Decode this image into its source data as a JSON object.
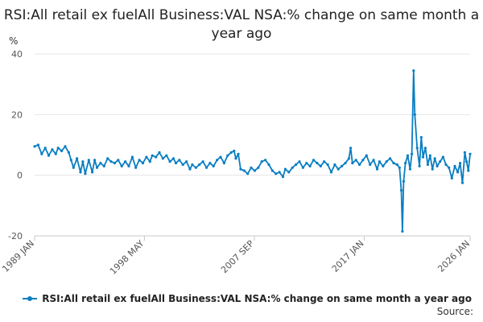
{
  "chart_data": {
    "type": "line",
    "title": "RSI:All retail ex fuelAll Business:VAL NSA:% change on same month a year ago",
    "ylabel": "%",
    "xlabel": "",
    "ylim": [
      -20,
      40
    ],
    "yticks": [
      -20,
      0,
      20,
      40
    ],
    "xlim": [
      1989.0,
      2026.0
    ],
    "xticks": [
      {
        "label": "1989 JAN",
        "x": 1989.0
      },
      {
        "label": "1998 MAY",
        "x": 1998.33
      },
      {
        "label": "2007 SEP",
        "x": 2007.67
      },
      {
        "label": "2017 JAN",
        "x": 2017.0
      },
      {
        "label": "2026 JAN",
        "x": 2026.0
      }
    ],
    "grid": true,
    "legend_position": "bottom-right",
    "series": [
      {
        "name": "RSI:All retail ex fuelAll Business:VAL NSA:% change on same month a year ago",
        "color": "#0a7ec2",
        "points": [
          [
            1989.0,
            9.5
          ],
          [
            1989.3,
            10.0
          ],
          [
            1989.6,
            7.0
          ],
          [
            1989.9,
            9.0
          ],
          [
            1990.2,
            6.5
          ],
          [
            1990.5,
            8.5
          ],
          [
            1990.8,
            7.0
          ],
          [
            1991.0,
            9.0
          ],
          [
            1991.3,
            8.0
          ],
          [
            1991.6,
            9.5
          ],
          [
            1991.9,
            7.5
          ],
          [
            1992.1,
            5.0
          ],
          [
            1992.3,
            2.5
          ],
          [
            1992.6,
            5.5
          ],
          [
            1992.9,
            1.0
          ],
          [
            1993.1,
            4.5
          ],
          [
            1993.3,
            0.5
          ],
          [
            1993.6,
            5.0
          ],
          [
            1993.9,
            1.0
          ],
          [
            1994.1,
            5.0
          ],
          [
            1994.3,
            2.5
          ],
          [
            1994.6,
            4.0
          ],
          [
            1994.9,
            3.0
          ],
          [
            1995.2,
            5.5
          ],
          [
            1995.5,
            4.5
          ],
          [
            1995.8,
            4.0
          ],
          [
            1996.1,
            5.0
          ],
          [
            1996.4,
            3.0
          ],
          [
            1996.7,
            4.5
          ],
          [
            1997.0,
            3.0
          ],
          [
            1997.3,
            6.0
          ],
          [
            1997.6,
            2.5
          ],
          [
            1997.9,
            5.0
          ],
          [
            1998.2,
            4.0
          ],
          [
            1998.5,
            6.0
          ],
          [
            1998.8,
            4.5
          ],
          [
            1999.0,
            6.5
          ],
          [
            1999.3,
            6.0
          ],
          [
            1999.6,
            7.5
          ],
          [
            1999.9,
            5.5
          ],
          [
            2000.2,
            6.5
          ],
          [
            2000.5,
            4.5
          ],
          [
            2000.8,
            5.5
          ],
          [
            2001.0,
            4.0
          ],
          [
            2001.3,
            5.0
          ],
          [
            2001.6,
            3.5
          ],
          [
            2001.9,
            4.5
          ],
          [
            2002.2,
            2.0
          ],
          [
            2002.4,
            3.5
          ],
          [
            2002.7,
            2.5
          ],
          [
            2003.0,
            3.5
          ],
          [
            2003.3,
            4.5
          ],
          [
            2003.6,
            2.5
          ],
          [
            2003.9,
            4.0
          ],
          [
            2004.2,
            3.0
          ],
          [
            2004.5,
            5.0
          ],
          [
            2004.8,
            6.0
          ],
          [
            2005.1,
            4.0
          ],
          [
            2005.4,
            6.5
          ],
          [
            2005.7,
            7.5
          ],
          [
            2005.95,
            8.0
          ],
          [
            2006.1,
            5.5
          ],
          [
            2006.3,
            7.0
          ],
          [
            2006.5,
            2.0
          ],
          [
            2006.8,
            1.5
          ],
          [
            2007.1,
            0.5
          ],
          [
            2007.4,
            2.5
          ],
          [
            2007.7,
            1.5
          ],
          [
            2008.0,
            2.5
          ],
          [
            2008.3,
            4.5
          ],
          [
            2008.6,
            5.0
          ],
          [
            2008.9,
            3.5
          ],
          [
            2009.2,
            1.5
          ],
          [
            2009.5,
            0.5
          ],
          [
            2009.8,
            1.0
          ],
          [
            2010.1,
            -0.5
          ],
          [
            2010.3,
            2.0
          ],
          [
            2010.6,
            1.0
          ],
          [
            2010.9,
            2.5
          ],
          [
            2011.2,
            3.5
          ],
          [
            2011.5,
            4.5
          ],
          [
            2011.8,
            2.5
          ],
          [
            2012.1,
            4.0
          ],
          [
            2012.4,
            3.0
          ],
          [
            2012.7,
            5.0
          ],
          [
            2013.0,
            4.0
          ],
          [
            2013.3,
            3.0
          ],
          [
            2013.6,
            4.5
          ],
          [
            2013.9,
            3.5
          ],
          [
            2014.2,
            1.0
          ],
          [
            2014.5,
            3.5
          ],
          [
            2014.8,
            2.0
          ],
          [
            2015.1,
            3.0
          ],
          [
            2015.4,
            4.0
          ],
          [
            2015.7,
            5.5
          ],
          [
            2015.85,
            9.0
          ],
          [
            2016.0,
            4.0
          ],
          [
            2016.3,
            5.0
          ],
          [
            2016.6,
            3.5
          ],
          [
            2016.9,
            5.0
          ],
          [
            2017.2,
            6.5
          ],
          [
            2017.5,
            3.5
          ],
          [
            2017.8,
            5.0
          ],
          [
            2018.1,
            2.0
          ],
          [
            2018.3,
            4.5
          ],
          [
            2018.6,
            3.0
          ],
          [
            2018.9,
            4.5
          ],
          [
            2019.2,
            5.5
          ],
          [
            2019.5,
            4.0
          ],
          [
            2019.8,
            3.5
          ],
          [
            2020.0,
            2.5
          ],
          [
            2020.15,
            -5.0
          ],
          [
            2020.25,
            -18.5
          ],
          [
            2020.35,
            -2.0
          ],
          [
            2020.5,
            4.0
          ],
          [
            2020.7,
            6.5
          ],
          [
            2020.9,
            2.0
          ],
          [
            2021.05,
            7.0
          ],
          [
            2021.2,
            34.5
          ],
          [
            2021.3,
            20.0
          ],
          [
            2021.5,
            9.0
          ],
          [
            2021.7,
            3.0
          ],
          [
            2021.85,
            12.5
          ],
          [
            2022.0,
            6.0
          ],
          [
            2022.2,
            9.0
          ],
          [
            2022.4,
            3.5
          ],
          [
            2022.6,
            6.5
          ],
          [
            2022.8,
            2.0
          ],
          [
            2023.0,
            5.5
          ],
          [
            2023.2,
            3.0
          ],
          [
            2023.45,
            4.5
          ],
          [
            2023.7,
            6.0
          ],
          [
            2023.95,
            3.5
          ],
          [
            2024.2,
            2.5
          ],
          [
            2024.45,
            -1.0
          ],
          [
            2024.7,
            3.0
          ],
          [
            2024.95,
            1.0
          ],
          [
            2025.15,
            4.0
          ],
          [
            2025.35,
            -2.5
          ],
          [
            2025.55,
            7.5
          ],
          [
            2025.7,
            4.5
          ],
          [
            2025.85,
            1.5
          ],
          [
            2026.0,
            7.0
          ]
        ]
      }
    ],
    "source_label": "Source:"
  }
}
